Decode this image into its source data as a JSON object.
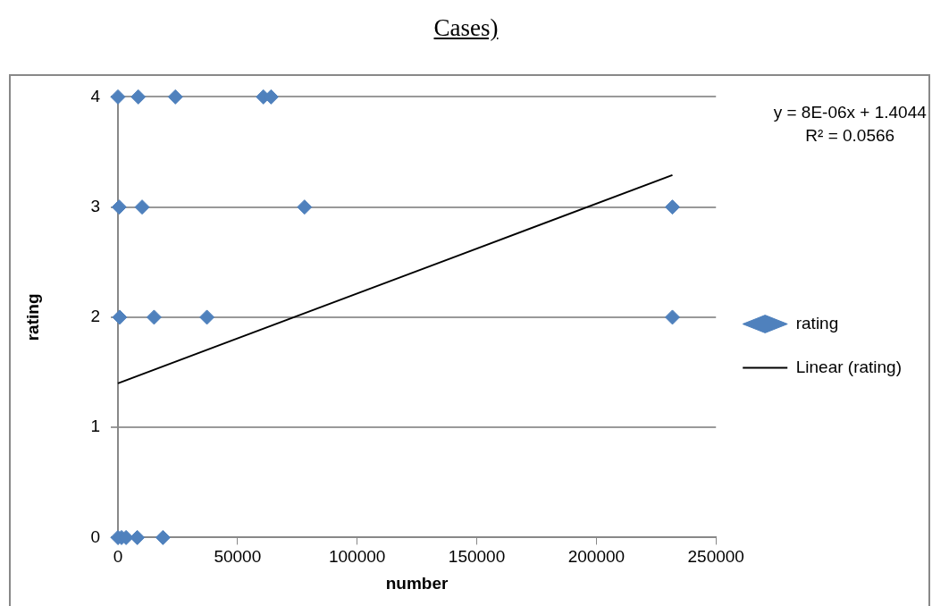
{
  "chart_data": {
    "type": "scatter",
    "title": "Cases)",
    "xlabel": "number",
    "ylabel": "rating",
    "annotations": [
      "y = 8E-06x + 1.4044",
      "R² = 0.0566"
    ],
    "xlim": [
      0,
      250000
    ],
    "xticks": [
      0,
      50000,
      100000,
      150000,
      200000,
      250000
    ],
    "ylim": [
      0,
      4
    ],
    "yticks": [
      0,
      1,
      2,
      3,
      4
    ],
    "grid": "y",
    "legend": "right",
    "marker": "diamond",
    "series": [
      {
        "name": "rating",
        "color": "#4f81bd",
        "x": [
          0,
          8500,
          24000,
          60800,
          64000,
          500,
          10100,
          78000,
          231800,
          700,
          15100,
          37200,
          231800,
          0,
          1500,
          3400,
          8100,
          18800
        ],
        "values": [
          4,
          4,
          4,
          4,
          4,
          3,
          3,
          3,
          3,
          2,
          2,
          2,
          2,
          0,
          0,
          0,
          0,
          0
        ]
      },
      {
        "name": "Linear (rating)",
        "type": "line",
        "color": "#000000",
        "marker": "none",
        "line_style": "solid",
        "x": [
          0,
          231800
        ],
        "values": [
          1.4,
          3.29
        ]
      }
    ]
  }
}
